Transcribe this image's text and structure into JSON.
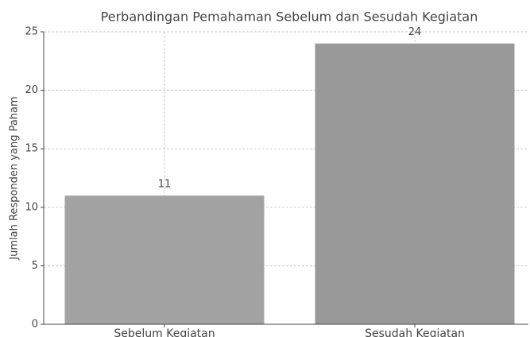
{
  "chart_data": {
    "type": "bar",
    "title": "Perbandingan Pemahaman Sebelum dan Sesudah Kegiatan",
    "ylabel": "Jumlah Responden yang Paham",
    "categories": [
      "Sebelum Kegiatan",
      "Sesudah Kegiatan"
    ],
    "values": [
      11,
      24
    ],
    "colors": [
      "#a3a3a3",
      "#999999"
    ],
    "ylim": [
      0,
      25
    ],
    "yticks": [
      0,
      5,
      10,
      15,
      20,
      25
    ],
    "grid": true
  }
}
